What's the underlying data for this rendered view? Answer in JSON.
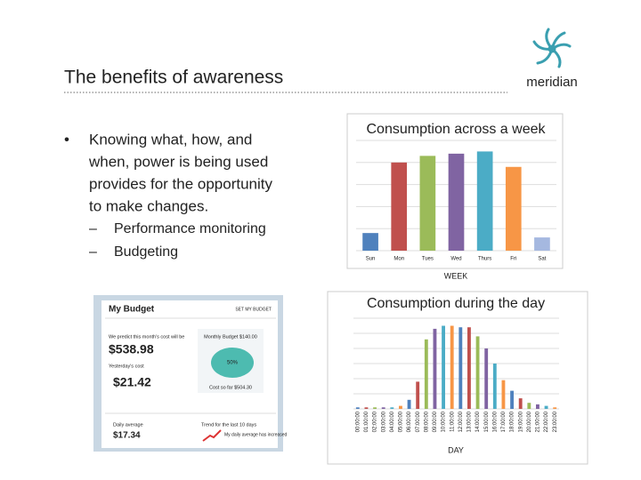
{
  "header": {
    "title": "The benefits of awareness",
    "logo": "meridian"
  },
  "bullets": {
    "lines": [
      "Knowing what, how, and",
      "when, power is being used",
      "provides for the opportunity",
      "to make changes."
    ],
    "sub": [
      "Performance monitoring",
      "Budgeting"
    ]
  },
  "budget": {
    "title": "My Budget",
    "link": "SET MY BUDGET",
    "predict": "We predict this month's cost will be",
    "predict_value": "$538.98",
    "yesterday": "Yesterday's cost",
    "yesterday_value": "$21.42",
    "monthly": "Monthly Budget $140.00",
    "percent": "50%",
    "cost_so_far": "Cost so far $504.30",
    "daily": "Daily average",
    "daily_value": "$17.34",
    "trend": "Trend for the last 10 days",
    "trend_note": "My daily average has increased"
  },
  "chart_data": [
    {
      "type": "bar",
      "title": "Consumption across a week",
      "x_label": "WEEK",
      "categories": [
        "Sun",
        "Mon",
        "Tues",
        "Wed",
        "Thurs",
        "Fri",
        "Sat"
      ],
      "values": [
        0.8,
        4.0,
        4.3,
        4.4,
        4.5,
        3.8,
        0.6
      ],
      "colors": [
        "#4f81bd",
        "#c0504d",
        "#9bbb59",
        "#8064a2",
        "#4bacc6",
        "#f79646",
        "#a5b8e0"
      ],
      "ylim": [
        0,
        5
      ],
      "yticks": [
        0,
        1,
        2,
        3,
        4,
        5
      ],
      "grid": true
    },
    {
      "type": "bar",
      "title": "Consumption during the day",
      "x_label": "DAY",
      "categories": [
        "00:00:00",
        "01:00:00",
        "02:00:00",
        "03:00:00",
        "04:00:00",
        "05:00:00",
        "06:00:00",
        "07:00:00",
        "08:00:00",
        "09:00:00",
        "10:00:00",
        "11:00:00",
        "12:00:00",
        "13:00:00",
        "14:00:00",
        "15:00:00",
        "16:00:00",
        "17:00:00",
        "18:00:00",
        "19:00:00",
        "20:00:00",
        "21:00:00",
        "22:00:00",
        "23:00:00"
      ],
      "values": [
        0.1,
        0.1,
        0.1,
        0.1,
        0.1,
        0.2,
        0.6,
        1.8,
        4.6,
        5.3,
        5.5,
        5.5,
        5.4,
        5.4,
        4.8,
        4.0,
        3.0,
        1.9,
        1.2,
        0.7,
        0.4,
        0.3,
        0.2,
        0.1
      ],
      "colors": [
        "#4f81bd",
        "#c0504d",
        "#9bbb59",
        "#8064a2",
        "#4bacc6",
        "#f79646",
        "#4f81bd",
        "#c0504d",
        "#9bbb59",
        "#8064a2",
        "#4bacc6",
        "#f79646",
        "#4f81bd",
        "#c0504d",
        "#9bbb59",
        "#8064a2",
        "#4bacc6",
        "#f79646",
        "#4f81bd",
        "#c0504d",
        "#9bbb59",
        "#8064a2",
        "#4bacc6",
        "#f79646"
      ],
      "ylim": [
        0,
        6
      ],
      "yticks": [
        0,
        1,
        2,
        3,
        4,
        5,
        6
      ],
      "grid": true
    }
  ]
}
